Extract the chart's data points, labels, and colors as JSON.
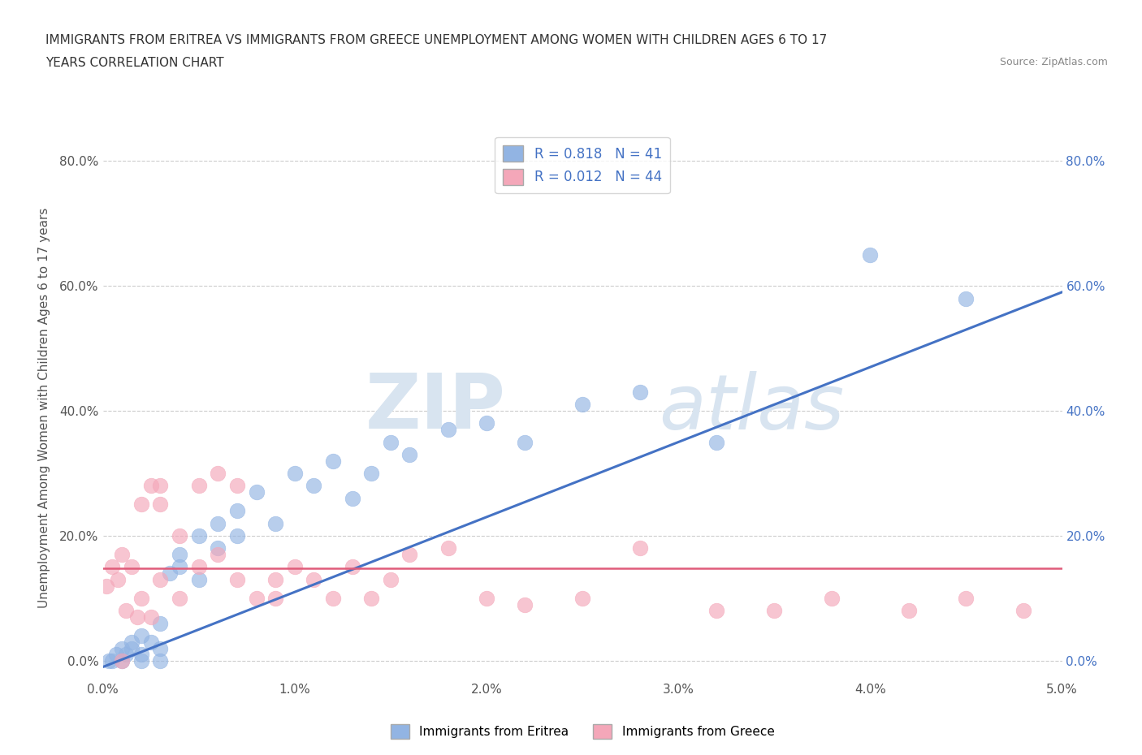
{
  "title_line1": "IMMIGRANTS FROM ERITREA VS IMMIGRANTS FROM GREECE UNEMPLOYMENT AMONG WOMEN WITH CHILDREN AGES 6 TO 17",
  "title_line2": "YEARS CORRELATION CHART",
  "source": "Source: ZipAtlas.com",
  "ylabel": "Unemployment Among Women with Children Ages 6 to 17 years",
  "xlim": [
    0.0,
    0.05
  ],
  "ylim": [
    -0.03,
    0.84
  ],
  "xticks": [
    0.0,
    0.01,
    0.02,
    0.03,
    0.04,
    0.05
  ],
  "xtick_labels": [
    "0.0%",
    "1.0%",
    "2.0%",
    "3.0%",
    "4.0%",
    "5.0%"
  ],
  "yticks": [
    0.0,
    0.2,
    0.4,
    0.6,
    0.8
  ],
  "ytick_labels": [
    "0.0%",
    "20.0%",
    "40.0%",
    "60.0%",
    "80.0%"
  ],
  "legend_label1": "R = 0.818   N = 41",
  "legend_label2": "R = 0.012   N = 44",
  "color_eritrea": "#92b4e3",
  "color_eritrea_line": "#4472c4",
  "color_greece": "#f4a7b9",
  "color_greece_line": "#e05c7a",
  "watermark_zip": "ZIP",
  "watermark_atlas": "atlas",
  "legend_bottom_label1": "Immigrants from Eritrea",
  "legend_bottom_label2": "Immigrants from Greece",
  "background_color": "#ffffff",
  "grid_color": "#cccccc",
  "eritrea_x": [
    0.0003,
    0.0005,
    0.0007,
    0.001,
    0.001,
    0.0012,
    0.0015,
    0.0015,
    0.002,
    0.002,
    0.002,
    0.0025,
    0.003,
    0.003,
    0.003,
    0.0035,
    0.004,
    0.004,
    0.005,
    0.005,
    0.006,
    0.006,
    0.007,
    0.007,
    0.008,
    0.009,
    0.01,
    0.011,
    0.012,
    0.013,
    0.014,
    0.015,
    0.016,
    0.018,
    0.02,
    0.022,
    0.025,
    0.028,
    0.032,
    0.04,
    0.045
  ],
  "eritrea_y": [
    0.0,
    0.0,
    0.01,
    0.0,
    0.02,
    0.01,
    0.02,
    0.03,
    0.0,
    0.01,
    0.04,
    0.03,
    0.0,
    0.02,
    0.06,
    0.14,
    0.15,
    0.17,
    0.13,
    0.2,
    0.18,
    0.22,
    0.2,
    0.24,
    0.27,
    0.22,
    0.3,
    0.28,
    0.32,
    0.26,
    0.3,
    0.35,
    0.33,
    0.37,
    0.38,
    0.35,
    0.41,
    0.43,
    0.35,
    0.65,
    0.58
  ],
  "greece_x": [
    0.0002,
    0.0005,
    0.0008,
    0.001,
    0.001,
    0.0015,
    0.002,
    0.002,
    0.0025,
    0.003,
    0.003,
    0.003,
    0.004,
    0.004,
    0.005,
    0.005,
    0.006,
    0.006,
    0.007,
    0.007,
    0.008,
    0.009,
    0.01,
    0.011,
    0.012,
    0.013,
    0.014,
    0.015,
    0.016,
    0.018,
    0.02,
    0.022,
    0.025,
    0.028,
    0.032,
    0.035,
    0.038,
    0.042,
    0.045,
    0.048,
    0.0012,
    0.0018,
    0.0025,
    0.009
  ],
  "greece_y": [
    0.12,
    0.15,
    0.13,
    0.0,
    0.17,
    0.15,
    0.25,
    0.1,
    0.28,
    0.13,
    0.25,
    0.28,
    0.1,
    0.2,
    0.15,
    0.28,
    0.17,
    0.3,
    0.13,
    0.28,
    0.1,
    0.13,
    0.15,
    0.13,
    0.1,
    0.15,
    0.1,
    0.13,
    0.17,
    0.18,
    0.1,
    0.09,
    0.1,
    0.18,
    0.08,
    0.08,
    0.1,
    0.08,
    0.1,
    0.08,
    0.08,
    0.07,
    0.07,
    0.1
  ],
  "eritrea_line_x0": 0.0,
  "eritrea_line_y0": -0.01,
  "eritrea_line_x1": 0.05,
  "eritrea_line_y1": 0.59,
  "greece_line_x0": 0.0,
  "greece_line_y0": 0.148,
  "greece_line_x1": 0.05,
  "greece_line_y1": 0.148
}
